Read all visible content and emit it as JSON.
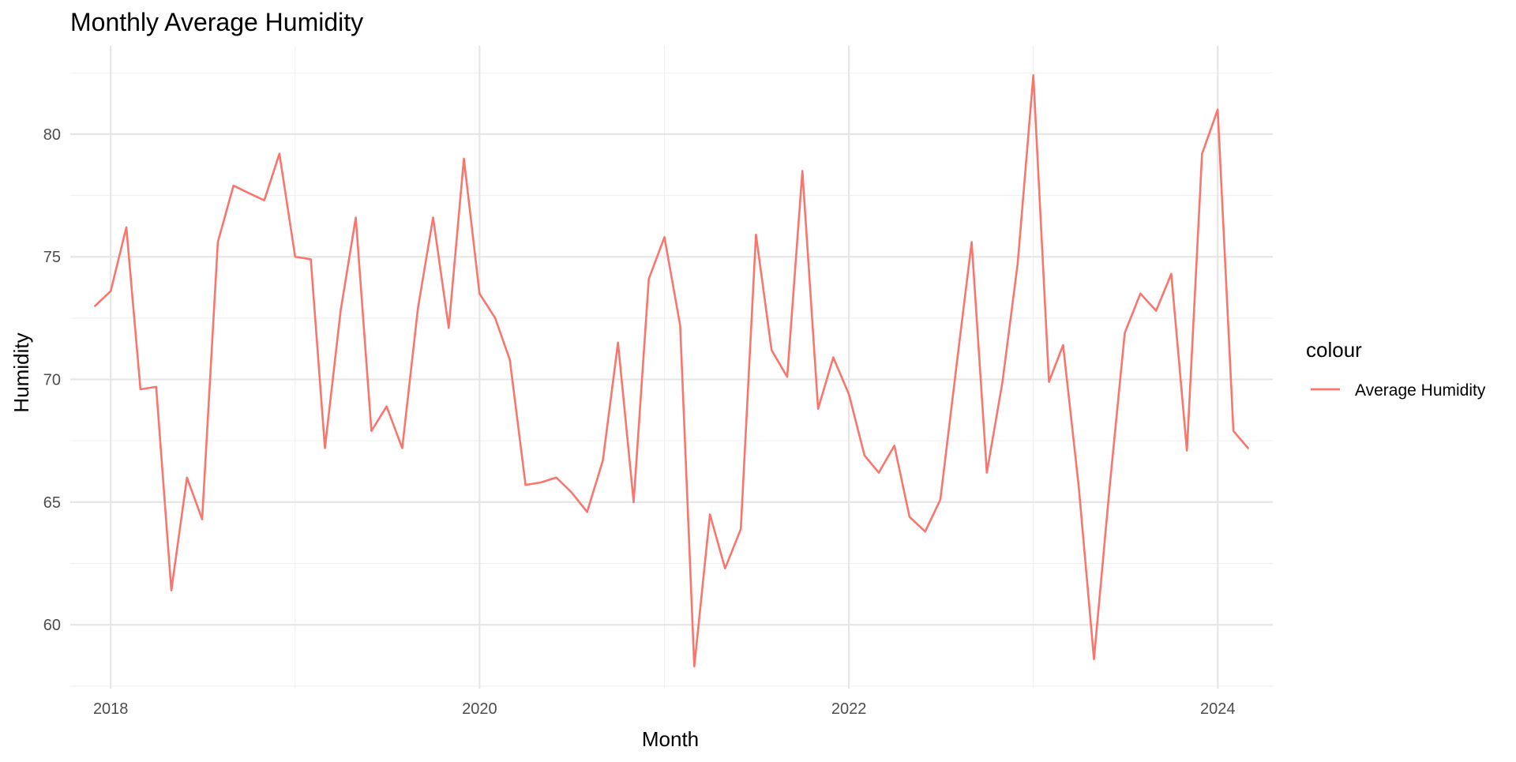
{
  "chart_data": {
    "type": "line",
    "title": "Monthly Average Humidity",
    "xlabel": "Month",
    "ylabel": "Humidity",
    "xlim": [
      "2017-10-13",
      "2024-04-19"
    ],
    "ylim": [
      57.4,
      83.6
    ],
    "x_ticks": [
      {
        "date": "2018-01-01",
        "label": "2018"
      },
      {
        "date": "2020-01-01",
        "label": "2020"
      },
      {
        "date": "2022-01-01",
        "label": "2022"
      },
      {
        "date": "2024-01-01",
        "label": "2024"
      }
    ],
    "y_ticks": [
      60,
      65,
      70,
      75,
      80
    ],
    "grid": true,
    "legend": {
      "title": "colour",
      "position": "right"
    },
    "series": [
      {
        "name": "Average Humidity",
        "color": "#F8766D",
        "x": [
          "2017-12-01",
          "2018-01-01",
          "2018-02-01",
          "2018-03-01",
          "2018-04-01",
          "2018-05-01",
          "2018-06-01",
          "2018-07-01",
          "2018-08-01",
          "2018-09-01",
          "2018-10-01",
          "2018-11-01",
          "2018-12-01",
          "2019-01-01",
          "2019-02-01",
          "2019-03-01",
          "2019-04-01",
          "2019-05-01",
          "2019-06-01",
          "2019-07-01",
          "2019-08-01",
          "2019-09-01",
          "2019-10-01",
          "2019-11-01",
          "2019-12-01",
          "2020-01-01",
          "2020-02-01",
          "2020-03-01",
          "2020-04-01",
          "2020-05-01",
          "2020-06-01",
          "2020-07-01",
          "2020-08-01",
          "2020-09-01",
          "2020-10-01",
          "2020-11-01",
          "2020-12-01",
          "2021-01-01",
          "2021-02-01",
          "2021-03-01",
          "2021-04-01",
          "2021-05-01",
          "2021-06-01",
          "2021-07-01",
          "2021-08-01",
          "2021-09-01",
          "2021-10-01",
          "2021-11-01",
          "2021-12-01",
          "2022-01-01",
          "2022-02-01",
          "2022-03-01",
          "2022-04-01",
          "2022-05-01",
          "2022-06-01",
          "2022-07-01",
          "2022-08-01",
          "2022-09-01",
          "2022-10-01",
          "2022-11-01",
          "2022-12-01",
          "2023-01-01",
          "2023-02-01",
          "2023-03-01",
          "2023-04-01",
          "2023-05-01",
          "2023-06-01",
          "2023-07-01",
          "2023-08-01",
          "2023-09-01",
          "2023-10-01",
          "2023-11-01",
          "2023-12-01",
          "2024-01-01",
          "2024-02-01",
          "2024-03-01"
        ],
        "values": [
          73.0,
          73.6,
          76.2,
          69.6,
          69.7,
          61.4,
          66.0,
          64.3,
          75.6,
          77.9,
          77.6,
          77.3,
          79.2,
          75.0,
          74.9,
          67.2,
          72.8,
          76.6,
          67.9,
          68.9,
          67.2,
          72.9,
          76.6,
          72.1,
          79.0,
          73.5,
          72.5,
          70.8,
          65.7,
          65.8,
          66.0,
          65.4,
          64.6,
          66.7,
          71.5,
          65.0,
          74.1,
          75.8,
          72.2,
          58.3,
          64.5,
          62.3,
          63.9,
          75.9,
          71.2,
          70.1,
          78.5,
          68.8,
          70.9,
          69.4,
          66.9,
          66.2,
          67.3,
          64.4,
          63.8,
          65.1,
          70.4,
          75.6,
          66.2,
          69.9,
          74.7,
          82.4,
          69.9,
          71.4,
          65.6,
          58.6,
          65.6,
          71.9,
          73.5,
          72.8,
          74.3,
          67.1,
          79.2,
          81.0,
          67.9,
          67.2
        ]
      }
    ]
  }
}
